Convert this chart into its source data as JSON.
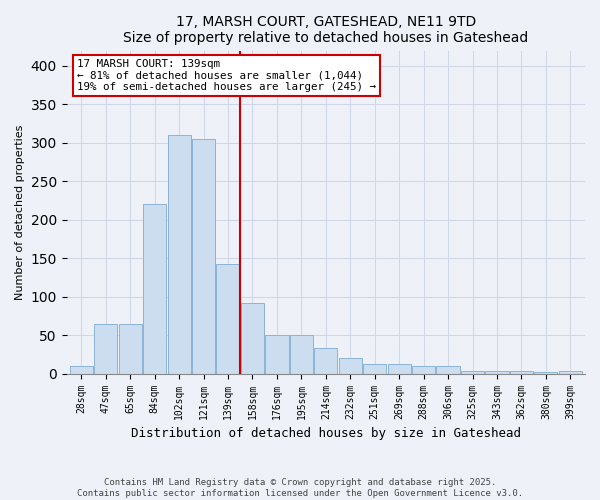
{
  "title": "17, MARSH COURT, GATESHEAD, NE11 9TD",
  "subtitle": "Size of property relative to detached houses in Gateshead",
  "xlabel": "Distribution of detached houses by size in Gateshead",
  "ylabel": "Number of detached properties",
  "categories": [
    "28sqm",
    "47sqm",
    "65sqm",
    "84sqm",
    "102sqm",
    "121sqm",
    "139sqm",
    "158sqm",
    "176sqm",
    "195sqm",
    "214sqm",
    "232sqm",
    "251sqm",
    "269sqm",
    "288sqm",
    "306sqm",
    "325sqm",
    "343sqm",
    "362sqm",
    "380sqm",
    "399sqm"
  ],
  "values": [
    10,
    65,
    65,
    220,
    310,
    305,
    143,
    92,
    50,
    50,
    33,
    20,
    13,
    13,
    10,
    10,
    4,
    4,
    3,
    2,
    3
  ],
  "bar_color": "#ccddf0",
  "bar_edge_color": "#8ab4d8",
  "highlight_index": 6,
  "highlight_color": "#cc0000",
  "ylim": [
    0,
    420
  ],
  "yticks": [
    0,
    50,
    100,
    150,
    200,
    250,
    300,
    350,
    400
  ],
  "annotation_title": "17 MARSH COURT: 139sqm",
  "annotation_line1": "← 81% of detached houses are smaller (1,044)",
  "annotation_line2": "19% of semi-detached houses are larger (245) →",
  "footer_line1": "Contains HM Land Registry data © Crown copyright and database right 2025.",
  "footer_line2": "Contains public sector information licensed under the Open Government Licence v3.0.",
  "background_color": "#eef2f8",
  "grid_color": "#d0d8e8"
}
